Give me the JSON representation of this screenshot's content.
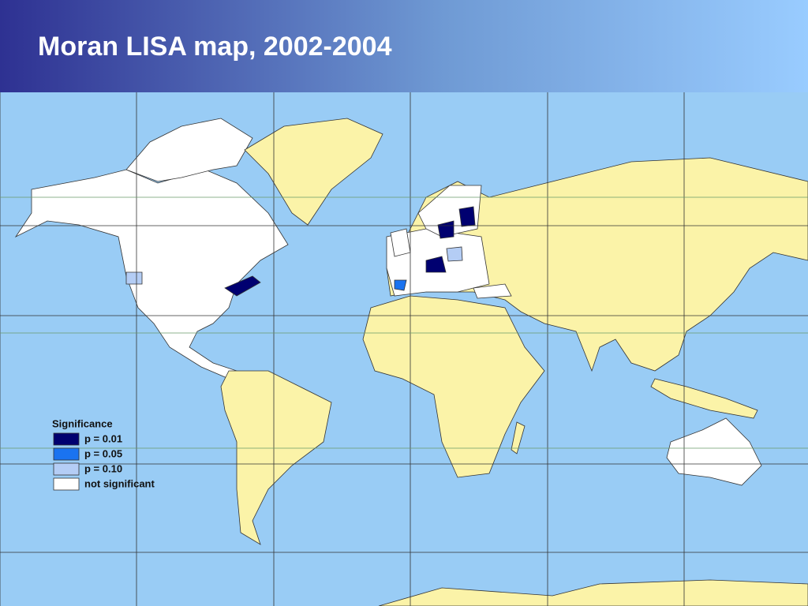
{
  "header": {
    "title": "Moran LISA map, 2002-2004"
  },
  "legend": {
    "title": "Significance",
    "items": [
      {
        "label": "p = 0.01",
        "color": "#000070"
      },
      {
        "label": "p = 0.05",
        "color": "#1a73f0"
      },
      {
        "label": "p = 0.10",
        "color": "#b4cdf5"
      },
      {
        "label": "not significant",
        "color": "#ffffff"
      }
    ]
  }
}
